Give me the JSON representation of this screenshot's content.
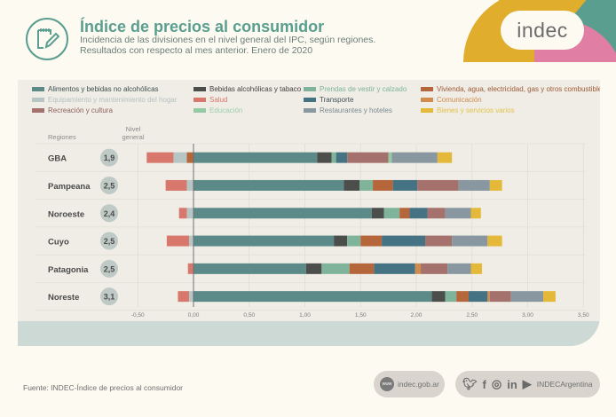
{
  "header": {
    "icon": "notepad-pencil-icon",
    "title": "Índice de precios al consumidor",
    "subtitle_line1": "Incidencia de las divisiones en el nivel general del IPC, según regiones.",
    "subtitle_line2": "Resultados con respecto al mes anterior. Enero de 2020",
    "logo_text": "indec",
    "logo_colors": {
      "teal": "#5a9e8f",
      "yellow": "#e0ad2c",
      "pink": "#e07fa3"
    }
  },
  "table_headers": {
    "regions": "Regiones",
    "nivel_line1": "Nivel",
    "nivel_line2": "general"
  },
  "chart_data": {
    "type": "bar",
    "orientation": "horizontal-stacked-diverging",
    "title": "Incidencia de las divisiones en el nivel general del IPC, según regiones",
    "xlabel": "",
    "ylabel": "Regiones",
    "xlim": [
      -0.5,
      3.5
    ],
    "x_ticks": [
      "-0,50",
      "0,00",
      "0,50",
      "1,00",
      "1,50",
      "2,00",
      "2,50",
      "3,00",
      "3,50"
    ],
    "x_tick_values": [
      -0.5,
      0,
      0.5,
      1,
      1.5,
      2,
      2.5,
      3,
      3.5
    ],
    "grid": true,
    "legend_position": "top",
    "categories": [
      "GBA",
      "Pampeana",
      "Noroeste",
      "Cuyo",
      "Patagonia",
      "Noreste"
    ],
    "nivel_general": [
      "1,9",
      "2,5",
      "2,4",
      "2,5",
      "2,5",
      "3,1"
    ],
    "series": [
      {
        "name": "Alimentos y bebidas no alcohólicas",
        "color": "#5b8a88",
        "values": [
          1.11,
          1.35,
          1.6,
          1.26,
          1.01,
          2.14
        ]
      },
      {
        "name": "Bebidas alcohólicas y tabaco",
        "color": "#4b4e4a",
        "values": [
          0.13,
          0.14,
          0.11,
          0.12,
          0.14,
          0.12
        ]
      },
      {
        "name": "Prendas de vestir y calzado",
        "color": "#7fb49a",
        "values": [
          0.04,
          0.12,
          0.14,
          0.12,
          0.25,
          0.1
        ]
      },
      {
        "name": "Vivienda, agua, electricidad, gas y otros combustibles",
        "color": "#b5673b",
        "values": [
          -0.06,
          0.18,
          0.09,
          0.19,
          0.22,
          0.11
        ]
      },
      {
        "name": "Equipamiento y mantenimiento del hogar",
        "color": "#b7c6c5",
        "values": [
          -0.12,
          -0.06,
          -0.06,
          -0.04,
          0.0,
          -0.04
        ]
      },
      {
        "name": "Salud",
        "color": "#d8786d",
        "values": [
          -0.24,
          -0.19,
          -0.07,
          -0.2,
          -0.05,
          -0.1
        ]
      },
      {
        "name": "Transporte",
        "color": "#467383",
        "values": [
          0.1,
          0.22,
          0.16,
          0.39,
          0.37,
          0.17
        ]
      },
      {
        "name": "Comunicación",
        "color": "#d08b4e",
        "values": [
          0.0,
          0.0,
          0.0,
          0.0,
          0.05,
          0.02
        ]
      },
      {
        "name": "Recreación y cultura",
        "color": "#a5716c",
        "values": [
          0.37,
          0.37,
          0.16,
          0.24,
          0.24,
          0.19
        ]
      },
      {
        "name": "Educación",
        "color": "#94c9a4",
        "values": [
          0.03,
          0.0,
          0.0,
          0.0,
          0.0,
          0.0
        ]
      },
      {
        "name": "Restaurantes y hoteles",
        "color": "#8897a0",
        "values": [
          0.41,
          0.28,
          0.23,
          0.32,
          0.21,
          0.29
        ]
      },
      {
        "name": "Bienes y servicios varios",
        "color": "#e4b93a",
        "values": [
          0.13,
          0.11,
          0.09,
          0.13,
          0.1,
          0.11
        ]
      }
    ]
  },
  "legend_text_colors": [
    "#3f4f4e",
    "#3f3f3f",
    "#7fb49a",
    "#a05a35",
    "#b5c2c1",
    "#d8786d",
    "#3f4f55",
    "#d08b4e",
    "#8f5f5a",
    "#9ccfab",
    "#7c8a92",
    "#e4c24a"
  ],
  "footer": {
    "source": "Fuente: INDEC-Índice de precios al consumidor",
    "website": "indec.gob.ar",
    "www_badge": "www",
    "social_handle": "INDECArgentina",
    "social_icons": [
      "twitter-icon",
      "facebook-icon",
      "instagram-icon",
      "linkedin-icon",
      "youtube-icon"
    ]
  }
}
